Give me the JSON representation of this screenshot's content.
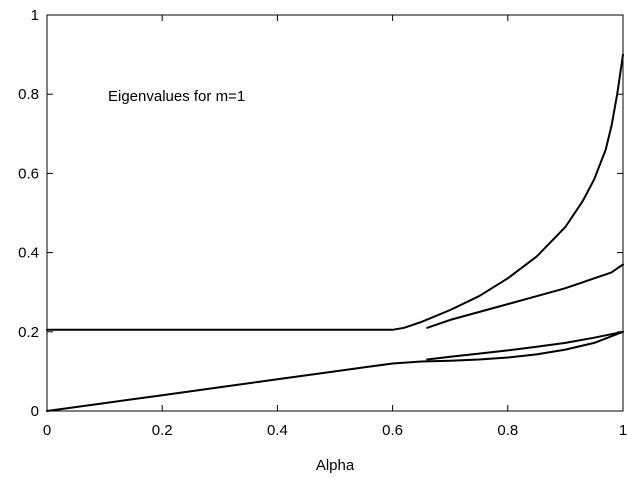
{
  "chart_data": {
    "type": "line",
    "title": "",
    "xlabel": "Alpha",
    "ylabel": "",
    "xlim": [
      0,
      1
    ],
    "ylim": [
      0,
      1
    ],
    "grid": false,
    "xticks": [
      "0",
      "0.2",
      "0.4",
      "0.6",
      "0.8",
      "1"
    ],
    "yticks": [
      "0",
      "0.2",
      "0.4",
      "0.6",
      "0.8",
      "1"
    ],
    "annotations": [
      "Eigenvalues for m=1"
    ],
    "series": [
      {
        "x": [
          0,
          0.1,
          0.2,
          0.3,
          0.4,
          0.5,
          0.6,
          0.62,
          0.65,
          0.7,
          0.75,
          0.8,
          0.85,
          0.9,
          0.93,
          0.95,
          0.97,
          0.98,
          0.99,
          1.0
        ],
        "y": [
          0.205,
          0.205,
          0.205,
          0.205,
          0.205,
          0.205,
          0.205,
          0.21,
          0.225,
          0.255,
          0.29,
          0.335,
          0.39,
          0.465,
          0.53,
          0.585,
          0.66,
          0.72,
          0.8,
          0.9
        ]
      },
      {
        "x": [
          0.66,
          0.7,
          0.75,
          0.8,
          0.85,
          0.9,
          0.93,
          0.95,
          0.97,
          0.98,
          0.99,
          1.0
        ],
        "y": [
          0.21,
          0.23,
          0.25,
          0.27,
          0.29,
          0.31,
          0.325,
          0.335,
          0.345,
          0.35,
          0.36,
          0.37
        ]
      },
      {
        "x": [
          0,
          0.1,
          0.2,
          0.3,
          0.4,
          0.5,
          0.55,
          0.6,
          0.65,
          0.7,
          0.75,
          0.8,
          0.85,
          0.9,
          0.95,
          1.0
        ],
        "y": [
          0,
          0.02,
          0.04,
          0.06,
          0.08,
          0.1,
          0.11,
          0.12,
          0.125,
          0.127,
          0.13,
          0.135,
          0.143,
          0.155,
          0.172,
          0.2
        ]
      },
      {
        "x": [
          0.66,
          0.7,
          0.75,
          0.8,
          0.85,
          0.9,
          0.95,
          1.0
        ],
        "y": [
          0.13,
          0.137,
          0.145,
          0.153,
          0.162,
          0.172,
          0.185,
          0.2
        ]
      }
    ]
  }
}
